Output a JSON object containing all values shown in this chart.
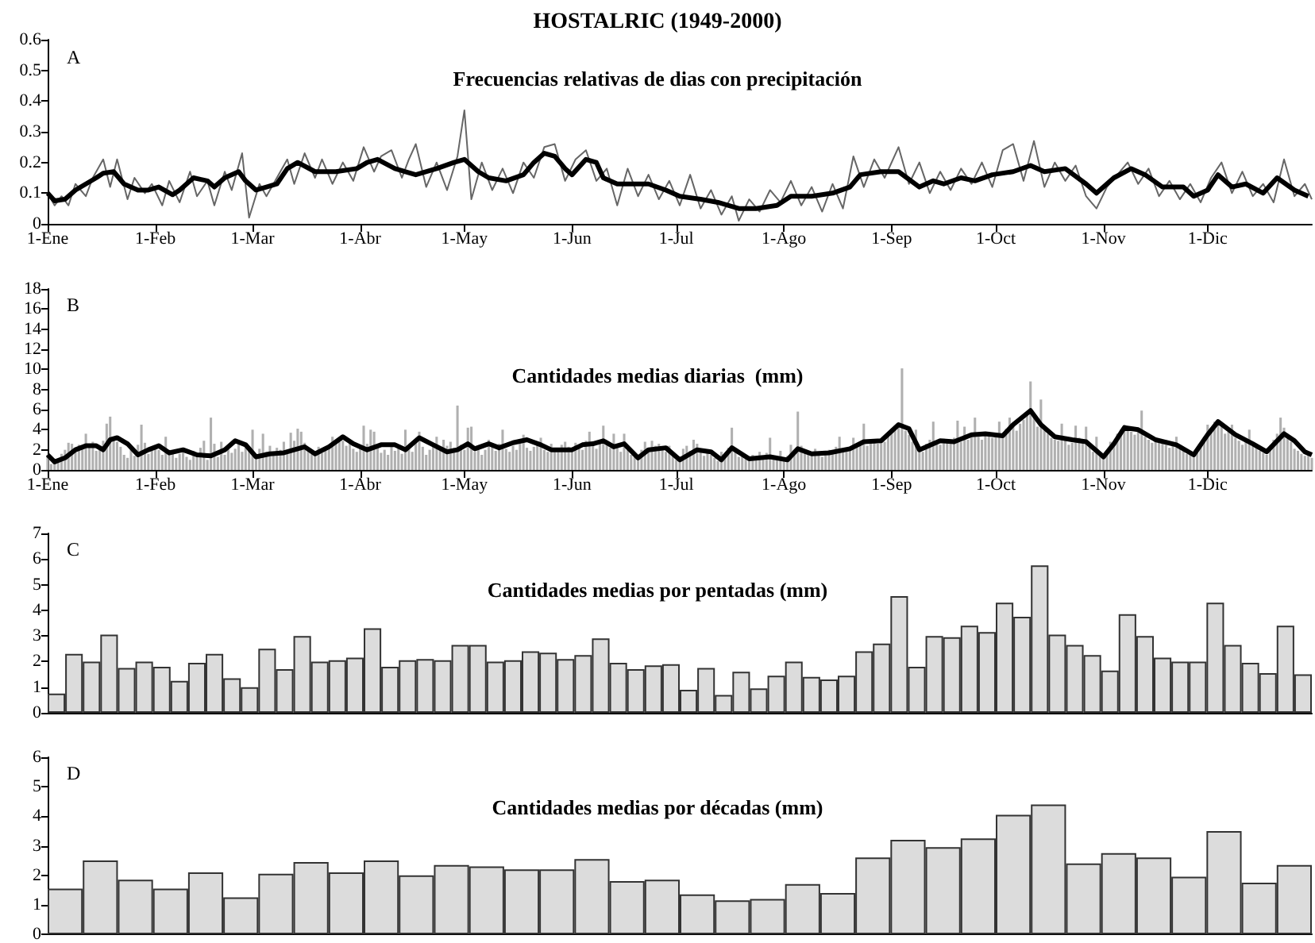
{
  "chart_data": [
    {
      "type": "line",
      "title": "HOSTALRIC (1949-2000)",
      "subtitle": "Frecuencias relativas de dias con precipitación",
      "annotations": [
        "A"
      ],
      "xlim": [
        "--01-01",
        "--12-31"
      ],
      "xticks": [
        {
          "value": "--01-01",
          "label": "1-Ene"
        },
        {
          "value": "--02-01",
          "label": "1-Feb"
        },
        {
          "value": "--03-01",
          "label": "1-Mar"
        },
        {
          "value": "--04-01",
          "label": "1-Abr"
        },
        {
          "value": "--05-01",
          "label": "1-May"
        },
        {
          "value": "--06-01",
          "label": "1-Jun"
        },
        {
          "value": "--07-01",
          "label": "1-Jul"
        },
        {
          "value": "--08-01",
          "label": "1-Ago"
        },
        {
          "value": "--09-01",
          "label": "1-Sep"
        },
        {
          "value": "--10-01",
          "label": "1-Oct"
        },
        {
          "value": "--11-01",
          "label": "1-Nov"
        },
        {
          "value": "--12-01",
          "label": "1-Dic"
        }
      ],
      "ylim": [
        0,
        0.6
      ],
      "yticks": [
        0,
        0.1,
        0.2,
        0.3,
        0.4,
        0.5,
        0.6
      ],
      "series": [
        {
          "color": "#666666",
          "x": [
            "--01-01",
            "--01-03",
            "--01-05",
            "--01-07",
            "--01-09",
            "--01-12",
            "--01-14",
            "--01-17",
            "--01-19",
            "--01-21",
            "--01-24",
            "--01-26",
            "--01-29",
            "--01-31",
            "--02-03",
            "--02-05",
            "--02-08",
            "--02-11",
            "--02-13",
            "--02-16",
            "--02-18",
            "--02-21",
            "--02-23",
            "--02-26",
            "--02-28",
            "--03-03",
            "--03-05",
            "--03-08",
            "--03-11",
            "--03-13",
            "--03-16",
            "--03-19",
            "--03-21",
            "--03-24",
            "--03-27",
            "--03-30",
            "--04-02",
            "--04-05",
            "--04-07",
            "--04-10",
            "--04-13",
            "--04-15",
            "--04-17",
            "--04-20",
            "--04-23",
            "--04-26",
            "--04-29",
            "--05-01",
            "--05-03",
            "--05-06",
            "--05-09",
            "--05-12",
            "--05-15",
            "--05-18",
            "--05-21",
            "--05-24",
            "--05-27",
            "--05-30",
            "--06-02",
            "--06-05",
            "--06-08",
            "--06-11",
            "--06-14",
            "--06-17",
            "--06-20",
            "--06-23",
            "--06-26",
            "--06-29",
            "--07-02",
            "--07-05",
            "--07-08",
            "--07-11",
            "--07-14",
            "--07-17",
            "--07-19",
            "--07-22",
            "--07-25",
            "--07-28",
            "--07-31",
            "--08-03",
            "--08-06",
            "--08-09",
            "--08-12",
            "--08-15",
            "--08-18",
            "--08-21",
            "--08-24",
            "--08-27",
            "--08-30",
            "--09-03",
            "--09-06",
            "--09-09",
            "--09-12",
            "--09-15",
            "--09-18",
            "--09-21",
            "--09-24",
            "--09-27",
            "--09-30",
            "--10-03",
            "--10-06",
            "--10-09",
            "--10-12",
            "--10-15",
            "--10-18",
            "--10-21",
            "--10-24",
            "--10-27",
            "--10-30",
            "--11-02",
            "--11-05",
            "--11-08",
            "--11-11",
            "--11-14",
            "--11-17",
            "--11-20",
            "--11-23",
            "--11-26",
            "--11-29",
            "--12-02",
            "--12-05",
            "--12-08",
            "--12-11",
            "--12-14",
            "--12-17",
            "--12-20",
            "--12-23",
            "--12-26",
            "--12-29",
            "--12-31"
          ],
          "values": [
            0.1,
            0.06,
            0.09,
            0.06,
            0.13,
            0.09,
            0.15,
            0.21,
            0.12,
            0.21,
            0.08,
            0.15,
            0.1,
            0.13,
            0.06,
            0.14,
            0.07,
            0.17,
            0.09,
            0.14,
            0.06,
            0.17,
            0.11,
            0.23,
            0.02,
            0.13,
            0.09,
            0.15,
            0.21,
            0.13,
            0.23,
            0.15,
            0.21,
            0.13,
            0.2,
            0.14,
            0.25,
            0.17,
            0.22,
            0.24,
            0.15,
            0.21,
            0.26,
            0.12,
            0.2,
            0.11,
            0.22,
            0.37,
            0.08,
            0.2,
            0.11,
            0.18,
            0.1,
            0.2,
            0.15,
            0.25,
            0.26,
            0.14,
            0.21,
            0.24,
            0.14,
            0.18,
            0.06,
            0.18,
            0.09,
            0.16,
            0.08,
            0.14,
            0.06,
            0.16,
            0.05,
            0.11,
            0.03,
            0.09,
            0.01,
            0.08,
            0.04,
            0.11,
            0.07,
            0.14,
            0.06,
            0.12,
            0.04,
            0.13,
            0.05,
            0.22,
            0.12,
            0.21,
            0.15,
            0.25,
            0.13,
            0.2,
            0.1,
            0.17,
            0.11,
            0.18,
            0.13,
            0.2,
            0.12,
            0.24,
            0.26,
            0.14,
            0.27,
            0.12,
            0.2,
            0.14,
            0.19,
            0.09,
            0.05,
            0.12,
            0.16,
            0.2,
            0.13,
            0.18,
            0.09,
            0.14,
            0.08,
            0.13,
            0.07,
            0.15,
            0.2,
            0.1,
            0.17,
            0.09,
            0.13,
            0.07,
            0.21,
            0.09,
            0.13,
            0.08
          ]
        },
        {
          "color": "#000000",
          "x": [
            "--01-01",
            "--01-03",
            "--01-06",
            "--01-09",
            "--01-12",
            "--01-15",
            "--01-17",
            "--01-20",
            "--01-23",
            "--01-27",
            "--01-30",
            "--02-02",
            "--02-06",
            "--02-08",
            "--02-12",
            "--02-16",
            "--02-18",
            "--02-21",
            "--02-25",
            "--02-27",
            "--03-02",
            "--03-05",
            "--03-08",
            "--03-11",
            "--03-14",
            "--03-19",
            "--03-25",
            "--03-31",
            "--04-03",
            "--04-06",
            "--04-11",
            "--04-17",
            "--04-23",
            "--04-28",
            "--05-01",
            "--05-05",
            "--05-08",
            "--05-13",
            "--05-18",
            "--05-21",
            "--05-24",
            "--05-27",
            "--05-30",
            "--06-01",
            "--06-05",
            "--06-08",
            "--06-10",
            "--06-14",
            "--06-19",
            "--06-23",
            "--06-28",
            "--07-02",
            "--07-08",
            "--07-13",
            "--07-19",
            "--07-24",
            "--07-30",
            "--08-03",
            "--08-09",
            "--08-15",
            "--08-20",
            "--08-23",
            "--08-29",
            "--09-03",
            "--09-09",
            "--09-13",
            "--09-16",
            "--09-21",
            "--09-25",
            "--09-30",
            "--10-06",
            "--10-11",
            "--10-15",
            "--10-21",
            "--10-27",
            "--10-30",
            "--11-04",
            "--11-09",
            "--11-13",
            "--11-18",
            "--11-24",
            "--11-27",
            "--12-01",
            "--12-04",
            "--12-08",
            "--12-12",
            "--12-17",
            "--12-21",
            "--12-26",
            "--12-30"
          ],
          "values": [
            0.1,
            0.075,
            0.08,
            0.11,
            0.13,
            0.15,
            0.165,
            0.17,
            0.13,
            0.11,
            0.11,
            0.12,
            0.095,
            0.11,
            0.15,
            0.14,
            0.12,
            0.15,
            0.17,
            0.14,
            0.11,
            0.12,
            0.13,
            0.18,
            0.2,
            0.17,
            0.17,
            0.18,
            0.2,
            0.21,
            0.18,
            0.16,
            0.18,
            0.2,
            0.21,
            0.17,
            0.15,
            0.14,
            0.16,
            0.2,
            0.23,
            0.22,
            0.18,
            0.16,
            0.21,
            0.2,
            0.15,
            0.13,
            0.13,
            0.13,
            0.11,
            0.09,
            0.08,
            0.07,
            0.05,
            0.05,
            0.06,
            0.09,
            0.09,
            0.1,
            0.12,
            0.16,
            0.17,
            0.17,
            0.12,
            0.14,
            0.13,
            0.15,
            0.14,
            0.16,
            0.17,
            0.19,
            0.17,
            0.18,
            0.13,
            0.1,
            0.15,
            0.18,
            0.16,
            0.12,
            0.12,
            0.09,
            0.11,
            0.16,
            0.12,
            0.13,
            0.1,
            0.15,
            0.11,
            0.09
          ]
        }
      ]
    },
    {
      "type": "bar",
      "title": "Cantidades medias diarias  (mm)",
      "annotations": [
        "B"
      ],
      "xlim": [
        "--01-01",
        "--12-31"
      ],
      "xticks": [
        {
          "value": "--01-01",
          "label": "1-Ene"
        },
        {
          "value": "--02-01",
          "label": "1-Feb"
        },
        {
          "value": "--03-01",
          "label": "1-Mar"
        },
        {
          "value": "--04-01",
          "label": "1-Abr"
        },
        {
          "value": "--05-01",
          "label": "1-May"
        },
        {
          "value": "--06-01",
          "label": "1-Jun"
        },
        {
          "value": "--07-01",
          "label": "1-Jul"
        },
        {
          "value": "--08-01",
          "label": "1-Ago"
        },
        {
          "value": "--09-01",
          "label": "1-Sep"
        },
        {
          "value": "--10-01",
          "label": "1-Oct"
        },
        {
          "value": "--11-01",
          "label": "1-Nov"
        },
        {
          "value": "--12-01",
          "label": "1-Dic"
        }
      ],
      "ylim": [
        0,
        18
      ],
      "yticks": [
        0,
        2,
        4,
        6,
        8,
        10,
        12,
        14,
        16,
        18
      ],
      "x": [
        "--01-01",
        "--01-02",
        "--01-03",
        "--01-04",
        "--01-05",
        "--01-06",
        "--01-07",
        "--01-08",
        "--01-09",
        "--01-10",
        "--01-11",
        "--01-12",
        "--01-13",
        "--01-14",
        "--01-15",
        "--01-16",
        "--01-17",
        "--01-18",
        "--01-19",
        "--01-20",
        "--01-21",
        "--01-22",
        "--01-23",
        "--01-24",
        "--01-25",
        "--01-26",
        "--01-27",
        "--01-28",
        "--01-29",
        "--01-30",
        "--01-31",
        "--02-01",
        "--02-02",
        "--02-03",
        "--02-04",
        "--02-05",
        "--02-06",
        "--02-07",
        "--02-08",
        "--02-09",
        "--02-10",
        "--02-11",
        "--02-12",
        "--02-13",
        "--02-14",
        "--02-15",
        "--02-16",
        "--02-17",
        "--02-18",
        "--02-19",
        "--02-20",
        "--02-21",
        "--02-22",
        "--02-23",
        "--02-24",
        "--02-25",
        "--02-26",
        "--02-27",
        "--02-28",
        "--03-01",
        "--03-02",
        "--03-03",
        "--03-04",
        "--03-05",
        "--03-06",
        "--03-07",
        "--03-08",
        "--03-09",
        "--03-10",
        "--03-11",
        "--03-12",
        "--03-13",
        "--03-14",
        "--03-15",
        "--03-16",
        "--03-17",
        "--03-18",
        "--03-19",
        "--03-20",
        "--03-21",
        "--03-22",
        "--03-23",
        "--03-24",
        "--03-25",
        "--03-26",
        "--03-27",
        "--03-28",
        "--03-29",
        "--03-30",
        "--03-31",
        "--04-01",
        "--04-02",
        "--04-03",
        "--04-04",
        "--04-05",
        "--04-06",
        "--04-07",
        "--04-08",
        "--04-09",
        "--04-10",
        "--04-11",
        "--04-12",
        "--04-13",
        "--04-14",
        "--04-15",
        "--04-16",
        "--04-17",
        "--04-18",
        "--04-19",
        "--04-20",
        "--04-21",
        "--04-22",
        "--04-23",
        "--04-24",
        "--04-25",
        "--04-26",
        "--04-27",
        "--04-28",
        "--04-29",
        "--04-30",
        "--05-01",
        "--05-02",
        "--05-03",
        "--05-04",
        "--05-05",
        "--05-06",
        "--05-07",
        "--05-08",
        "--05-09",
        "--05-10",
        "--05-11",
        "--05-12",
        "--05-13",
        "--05-14",
        "--05-15",
        "--05-16",
        "--05-17",
        "--05-18",
        "--05-19",
        "--05-20",
        "--05-21",
        "--05-22",
        "--05-23",
        "--05-24",
        "--05-25",
        "--05-26",
        "--05-27",
        "--05-28",
        "--05-29",
        "--05-30",
        "--05-31",
        "--06-01",
        "--06-02",
        "--06-03",
        "--06-04",
        "--06-05",
        "--06-06",
        "--06-07",
        "--06-08",
        "--06-09",
        "--06-10",
        "--06-11",
        "--06-12",
        "--06-13",
        "--06-14",
        "--06-15",
        "--06-16",
        "--06-17",
        "--06-18",
        "--06-19",
        "--06-20",
        "--06-21",
        "--06-22",
        "--06-23",
        "--06-24",
        "--06-25",
        "--06-26",
        "--06-27",
        "--06-28",
        "--06-29",
        "--06-30",
        "--07-01",
        "--07-02",
        "--07-03",
        "--07-04",
        "--07-05",
        "--07-06",
        "--07-07",
        "--07-08",
        "--07-09",
        "--07-10",
        "--07-11",
        "--07-12",
        "--07-13",
        "--07-14",
        "--07-15",
        "--07-16",
        "--07-17",
        "--07-18",
        "--07-19",
        "--07-20",
        "--07-21",
        "--07-22",
        "--07-23",
        "--07-24",
        "--07-25",
        "--07-26",
        "--07-27",
        "--07-28",
        "--07-29",
        "--07-30",
        "--07-31",
        "--08-01",
        "--08-02",
        "--08-03",
        "--08-04",
        "--08-05",
        "--08-06",
        "--08-07",
        "--08-08",
        "--08-09",
        "--08-10",
        "--08-11",
        "--08-12",
        "--08-13",
        "--08-14",
        "--08-15",
        "--08-16",
        "--08-17",
        "--08-18",
        "--08-19",
        "--08-20",
        "--08-21",
        "--08-22",
        "--08-23",
        "--08-24",
        "--08-25",
        "--08-26",
        "--08-27",
        "--08-28",
        "--08-29",
        "--08-30",
        "--08-31",
        "--09-01",
        "--09-02",
        "--09-03",
        "--09-04",
        "--09-05",
        "--09-06",
        "--09-07",
        "--09-08",
        "--09-09",
        "--09-10",
        "--09-11",
        "--09-12",
        "--09-13",
        "--09-14",
        "--09-15",
        "--09-16",
        "--09-17",
        "--09-18",
        "--09-19",
        "--09-20",
        "--09-21",
        "--09-22",
        "--09-23",
        "--09-24",
        "--09-25",
        "--09-26",
        "--09-27",
        "--09-28",
        "--09-29",
        "--09-30",
        "--10-01",
        "--10-02",
        "--10-03",
        "--10-04",
        "--10-05",
        "--10-06",
        "--10-07",
        "--10-08",
        "--10-09",
        "--10-10",
        "--10-11",
        "--10-12",
        "--10-13",
        "--10-14",
        "--10-15",
        "--10-16",
        "--10-17",
        "--10-18",
        "--10-19",
        "--10-20",
        "--10-21",
        "--10-22",
        "--10-23",
        "--10-24",
        "--10-25",
        "--10-26",
        "--10-27",
        "--10-28",
        "--10-29",
        "--10-30",
        "--10-31",
        "--11-01",
        "--11-02",
        "--11-03",
        "--11-04",
        "--11-05",
        "--11-06",
        "--11-07",
        "--11-08",
        "--11-09",
        "--11-10",
        "--11-11",
        "--11-12",
        "--11-13",
        "--11-14",
        "--11-15",
        "--11-16",
        "--11-17",
        "--11-18",
        "--11-19",
        "--11-20",
        "--11-21",
        "--11-22",
        "--11-23",
        "--11-24",
        "--11-25",
        "--11-26",
        "--11-27",
        "--11-28",
        "--11-29",
        "--11-30",
        "--12-01",
        "--12-02",
        "--12-03",
        "--12-04",
        "--12-05",
        "--12-06",
        "--12-07",
        "--12-08",
        "--12-09",
        "--12-10",
        "--12-11",
        "--12-12",
        "--12-13",
        "--12-14",
        "--12-15",
        "--12-16",
        "--12-17",
        "--12-18",
        "--12-19",
        "--12-20",
        "--12-21",
        "--12-22",
        "--12-23",
        "--12-24",
        "--12-25",
        "--12-26",
        "--12-27",
        "--12-28",
        "--12-29",
        "--12-30",
        "--12-31"
      ],
      "series": [
        {
          "color": "#b0b0b0",
          "values": [
            1.5,
            0.6,
            0.8,
            1.1,
            1.6,
            2.0,
            2.7,
            2.6,
            1.8,
            2.5,
            2.3,
            3.6,
            2.4,
            2.8,
            1.9,
            2.2,
            2.9,
            4.6,
            5.3,
            3.0,
            2.8,
            2.3,
            1.5,
            1.2,
            2.0,
            1.4,
            2.5,
            4.5,
            2.7,
            1.6,
            1.9,
            2.2,
            2.0,
            1.5,
            3.3,
            2.0,
            1.8,
            1.2,
            1.6,
            2.1,
            1.3,
            1.0,
            1.9,
            1.4,
            2.2,
            2.9,
            1.0,
            5.2,
            2.6,
            1.3,
            2.8,
            1.5,
            2.4,
            1.7,
            2.1,
            2.9,
            1.8,
            2.3,
            1.9,
            4.0,
            1.3,
            2.1,
            3.6,
            1.8,
            2.4,
            1.6,
            2.2,
            2.0,
            2.8,
            1.9,
            3.7,
            2.9,
            4.1,
            3.8,
            2.7,
            2.2,
            1.8,
            1.5,
            2.3,
            1.7,
            2.1,
            2.4,
            3.3,
            2.6,
            2.8,
            2.9,
            2.4,
            3.0,
            2.1,
            1.8,
            2.3,
            4.4,
            2.6,
            4.0,
            3.8,
            2.2,
            1.7,
            2.0,
            1.5,
            2.5,
            1.9,
            2.2,
            1.6,
            4.0,
            2.4,
            1.8,
            2.7,
            3.8,
            2.3,
            1.5,
            2.0,
            2.6,
            3.3,
            2.1,
            3.0,
            2.4,
            2.8,
            2.2,
            6.4,
            2.5,
            2.0,
            4.2,
            4.3,
            1.8,
            2.2,
            1.5,
            2.0,
            3.0,
            2.4,
            1.9,
            2.6,
            4.0,
            2.1,
            1.8,
            2.4,
            2.0,
            2.7,
            3.5,
            2.2,
            1.9,
            2.3,
            2.5,
            3.2,
            2.0,
            1.8,
            2.6,
            2.2,
            1.9,
            2.5,
            2.8,
            2.3,
            1.9,
            2.7,
            2.4,
            2.0,
            2.9,
            3.8,
            2.5,
            2.1,
            2.8,
            4.4,
            2.6,
            2.2,
            3.6,
            2.4,
            1.8,
            3.6,
            2.0,
            1.5,
            1.3,
            1.1,
            2.0,
            2.8,
            2.2,
            2.9,
            2.4,
            2.6,
            2.0,
            1.8,
            2.4,
            1.6,
            1.0,
            1.3,
            2.1,
            2.4,
            1.9,
            3.0,
            2.6,
            1.8,
            1.4,
            2.0,
            1.5,
            1.2,
            0.9,
            1.8,
            1.4,
            2.2,
            4.2,
            2.0,
            1.3,
            1.6,
            1.2,
            1.0,
            1.5,
            1.3,
            1.8,
            1.1,
            1.7,
            3.2,
            1.4,
            1.2,
            1.9,
            1.0,
            1.4,
            2.5,
            2.0,
            5.8,
            2.4,
            1.7,
            1.9,
            1.5,
            2.1,
            1.8,
            1.3,
            1.7,
            2.0,
            1.6,
            2.3,
            3.3,
            1.8,
            2.0,
            1.9,
            3.2,
            2.6,
            2.8,
            4.6,
            2.4,
            2.9,
            3.0,
            2.6,
            3.1,
            2.8,
            3.4,
            3.8,
            4.0,
            4.2,
            10.1,
            3.9,
            3.5,
            2.8,
            4.0,
            2.2,
            1.8,
            2.6,
            3.0,
            4.8,
            2.7,
            2.5,
            3.1,
            2.9,
            2.6,
            3.2,
            4.9,
            2.8,
            4.3,
            3.0,
            3.6,
            5.2,
            3.3,
            3.0,
            3.5,
            3.8,
            3.2,
            3.6,
            4.8,
            3.4,
            4.1,
            5.2,
            4.5,
            3.9,
            4.6,
            5.0,
            5.4,
            8.8,
            5.2,
            4.3,
            7.0,
            4.0,
            3.6,
            3.2,
            3.0,
            2.9,
            4.6,
            3.1,
            2.5,
            2.7,
            4.4,
            3.2,
            2.8,
            4.3,
            2.4,
            1.8,
            3.3,
            1.5,
            1.2,
            1.9,
            2.8,
            2.4,
            3.6,
            4.0,
            4.5,
            4.2,
            3.8,
            3.5,
            4.1,
            5.9,
            3.3,
            3.0,
            2.7,
            3.2,
            2.8,
            3.0,
            2.5,
            2.2,
            2.6,
            3.3,
            2.4,
            2.0,
            1.6,
            1.8,
            1.4,
            1.7,
            2.4,
            3.3,
            4.5,
            4.2,
            4.8,
            5.0,
            4.4,
            3.6,
            3.8,
            4.5,
            3.2,
            2.9,
            2.5,
            2.8,
            4.0,
            2.6,
            2.2,
            1.9,
            1.7,
            1.5,
            2.4,
            3.0,
            3.6,
            5.2,
            4.2,
            3.5,
            2.8,
            2.1,
            1.9,
            1.6,
            1.4,
            1.5,
            1.2
          ]
        },
        {
          "type": "line",
          "color": "#000000",
          "x": [
            "--01-01",
            "--01-03",
            "--01-06",
            "--01-09",
            "--01-12",
            "--01-15",
            "--01-17",
            "--01-19",
            "--01-21",
            "--01-24",
            "--01-27",
            "--01-30",
            "--02-02",
            "--02-05",
            "--02-09",
            "--02-13",
            "--02-17",
            "--02-21",
            "--02-24",
            "--02-27",
            "--03-02",
            "--03-06",
            "--03-10",
            "--03-13",
            "--03-16",
            "--03-19",
            "--03-23",
            "--03-27",
            "--03-30",
            "--04-03",
            "--04-07",
            "--04-11",
            "--04-14",
            "--04-18",
            "--04-22",
            "--04-26",
            "--04-29",
            "--05-02",
            "--05-04",
            "--05-08",
            "--05-11",
            "--05-15",
            "--05-19",
            "--05-23",
            "--05-26",
            "--05-29",
            "--06-01",
            "--06-04",
            "--06-07",
            "--06-10",
            "--06-13",
            "--06-16",
            "--06-20",
            "--06-23",
            "--06-28",
            "--07-02",
            "--07-07",
            "--07-11",
            "--07-14",
            "--07-17",
            "--07-22",
            "--07-28",
            "--08-02",
            "--08-05",
            "--08-09",
            "--08-14",
            "--08-20",
            "--08-24",
            "--08-29",
            "--09-03",
            "--09-06",
            "--09-09",
            "--09-15",
            "--09-19",
            "--09-24",
            "--09-28",
            "--10-03",
            "--10-06",
            "--10-11",
            "--10-14",
            "--10-18",
            "--10-23",
            "--10-27",
            "--11-01",
            "--11-04",
            "--11-07",
            "--11-11",
            "--11-16",
            "--11-22",
            "--11-27",
            "--12-01",
            "--12-04",
            "--12-09",
            "--12-14",
            "--12-18",
            "--12-23",
            "--12-26",
            "--12-29",
            "--12-31"
          ],
          "values": [
            1.5,
            0.8,
            1.2,
            2.0,
            2.4,
            2.4,
            2.0,
            3.0,
            3.2,
            2.6,
            1.5,
            2.0,
            2.4,
            1.7,
            2.0,
            1.5,
            1.4,
            2.0,
            2.9,
            2.5,
            1.3,
            1.6,
            1.7,
            2.0,
            2.3,
            1.6,
            2.3,
            3.3,
            2.6,
            2.0,
            2.5,
            2.5,
            2.0,
            3.2,
            2.5,
            1.8,
            2.0,
            2.6,
            2.1,
            2.6,
            2.2,
            2.7,
            3.0,
            2.5,
            2.0,
            2.0,
            2.0,
            2.5,
            2.6,
            2.9,
            2.3,
            2.6,
            1.2,
            2.0,
            2.2,
            1.0,
            2.0,
            1.8,
            1.0,
            2.2,
            1.1,
            1.3,
            1.0,
            2.1,
            1.6,
            1.7,
            2.1,
            2.8,
            2.9,
            4.5,
            4.1,
            2.0,
            2.9,
            2.8,
            3.5,
            3.6,
            3.4,
            4.5,
            5.9,
            4.5,
            3.3,
            3.0,
            2.8,
            1.3,
            2.6,
            4.2,
            4.0,
            3.0,
            2.5,
            1.5,
            3.5,
            4.8,
            3.5,
            2.6,
            1.8,
            3.6,
            2.9,
            1.8,
            1.5
          ]
        }
      ]
    },
    {
      "type": "bar",
      "title": "Cantidades medias por pentadas (mm)",
      "annotations": [
        "C"
      ],
      "tick_labels": "y",
      "categories": [
        null,
        null,
        null,
        null,
        null,
        null,
        null,
        null,
        null,
        null,
        null,
        null,
        null,
        null,
        null,
        null,
        null,
        null,
        null,
        null,
        null,
        null,
        null,
        null,
        null,
        null,
        null,
        null,
        null,
        null,
        null,
        null,
        null,
        null,
        null,
        null,
        null,
        null,
        null,
        null,
        null,
        null,
        null,
        null,
        null,
        null,
        null,
        null,
        null,
        null,
        null,
        null,
        null,
        null,
        null,
        null,
        null,
        null,
        null,
        null,
        null,
        null,
        null,
        null,
        null,
        null,
        null,
        null,
        null,
        null,
        null,
        null
      ],
      "ylim": [
        0,
        7
      ],
      "yticks": [
        0,
        1,
        2,
        3,
        4,
        5,
        6,
        7
      ],
      "color": "#dcdcdc",
      "values": [
        0.75,
        2.3,
        2.0,
        3.05,
        1.75,
        2.0,
        1.8,
        1.25,
        1.95,
        2.3,
        1.35,
        1.0,
        2.5,
        1.7,
        3.0,
        2.0,
        2.05,
        2.15,
        3.3,
        1.8,
        2.05,
        2.1,
        2.05,
        2.65,
        2.65,
        2.0,
        2.05,
        2.4,
        2.35,
        2.1,
        2.25,
        2.9,
        1.95,
        1.7,
        1.85,
        1.9,
        0.9,
        1.75,
        0.7,
        1.6,
        0.95,
        1.45,
        2.0,
        1.4,
        1.3,
        1.45,
        2.4,
        2.7,
        4.55,
        1.8,
        3.0,
        2.95,
        3.4,
        3.15,
        4.3,
        3.75,
        5.75,
        3.05,
        2.65,
        2.25,
        1.65,
        3.85,
        3.0,
        2.15,
        2.0,
        2.0,
        4.3,
        2.65,
        1.95,
        1.55,
        3.4,
        1.5
      ]
    },
    {
      "type": "bar",
      "title": "Cantidades medias por décadas (mm)",
      "annotations": [
        "D"
      ],
      "tick_labels": "y",
      "categories": [
        null,
        null,
        null,
        null,
        null,
        null,
        null,
        null,
        null,
        null,
        null,
        null,
        null,
        null,
        null,
        null,
        null,
        null,
        null,
        null,
        null,
        null,
        null,
        null,
        null,
        null,
        null,
        null,
        null,
        null,
        null,
        null,
        null,
        null,
        null,
        null
      ],
      "ylim": [
        0,
        6
      ],
      "yticks": [
        0,
        1,
        2,
        3,
        4,
        5,
        6
      ],
      "color": "#dcdcdc",
      "values": [
        1.55,
        2.5,
        1.85,
        1.55,
        2.1,
        1.25,
        2.05,
        2.45,
        2.1,
        2.5,
        2.0,
        2.35,
        2.3,
        2.2,
        2.2,
        2.55,
        1.8,
        1.85,
        1.35,
        1.15,
        1.2,
        1.7,
        1.4,
        2.6,
        3.2,
        2.95,
        3.25,
        4.05,
        4.4,
        2.4,
        2.75,
        2.6,
        1.95,
        3.5,
        1.75,
        2.35
      ]
    }
  ]
}
